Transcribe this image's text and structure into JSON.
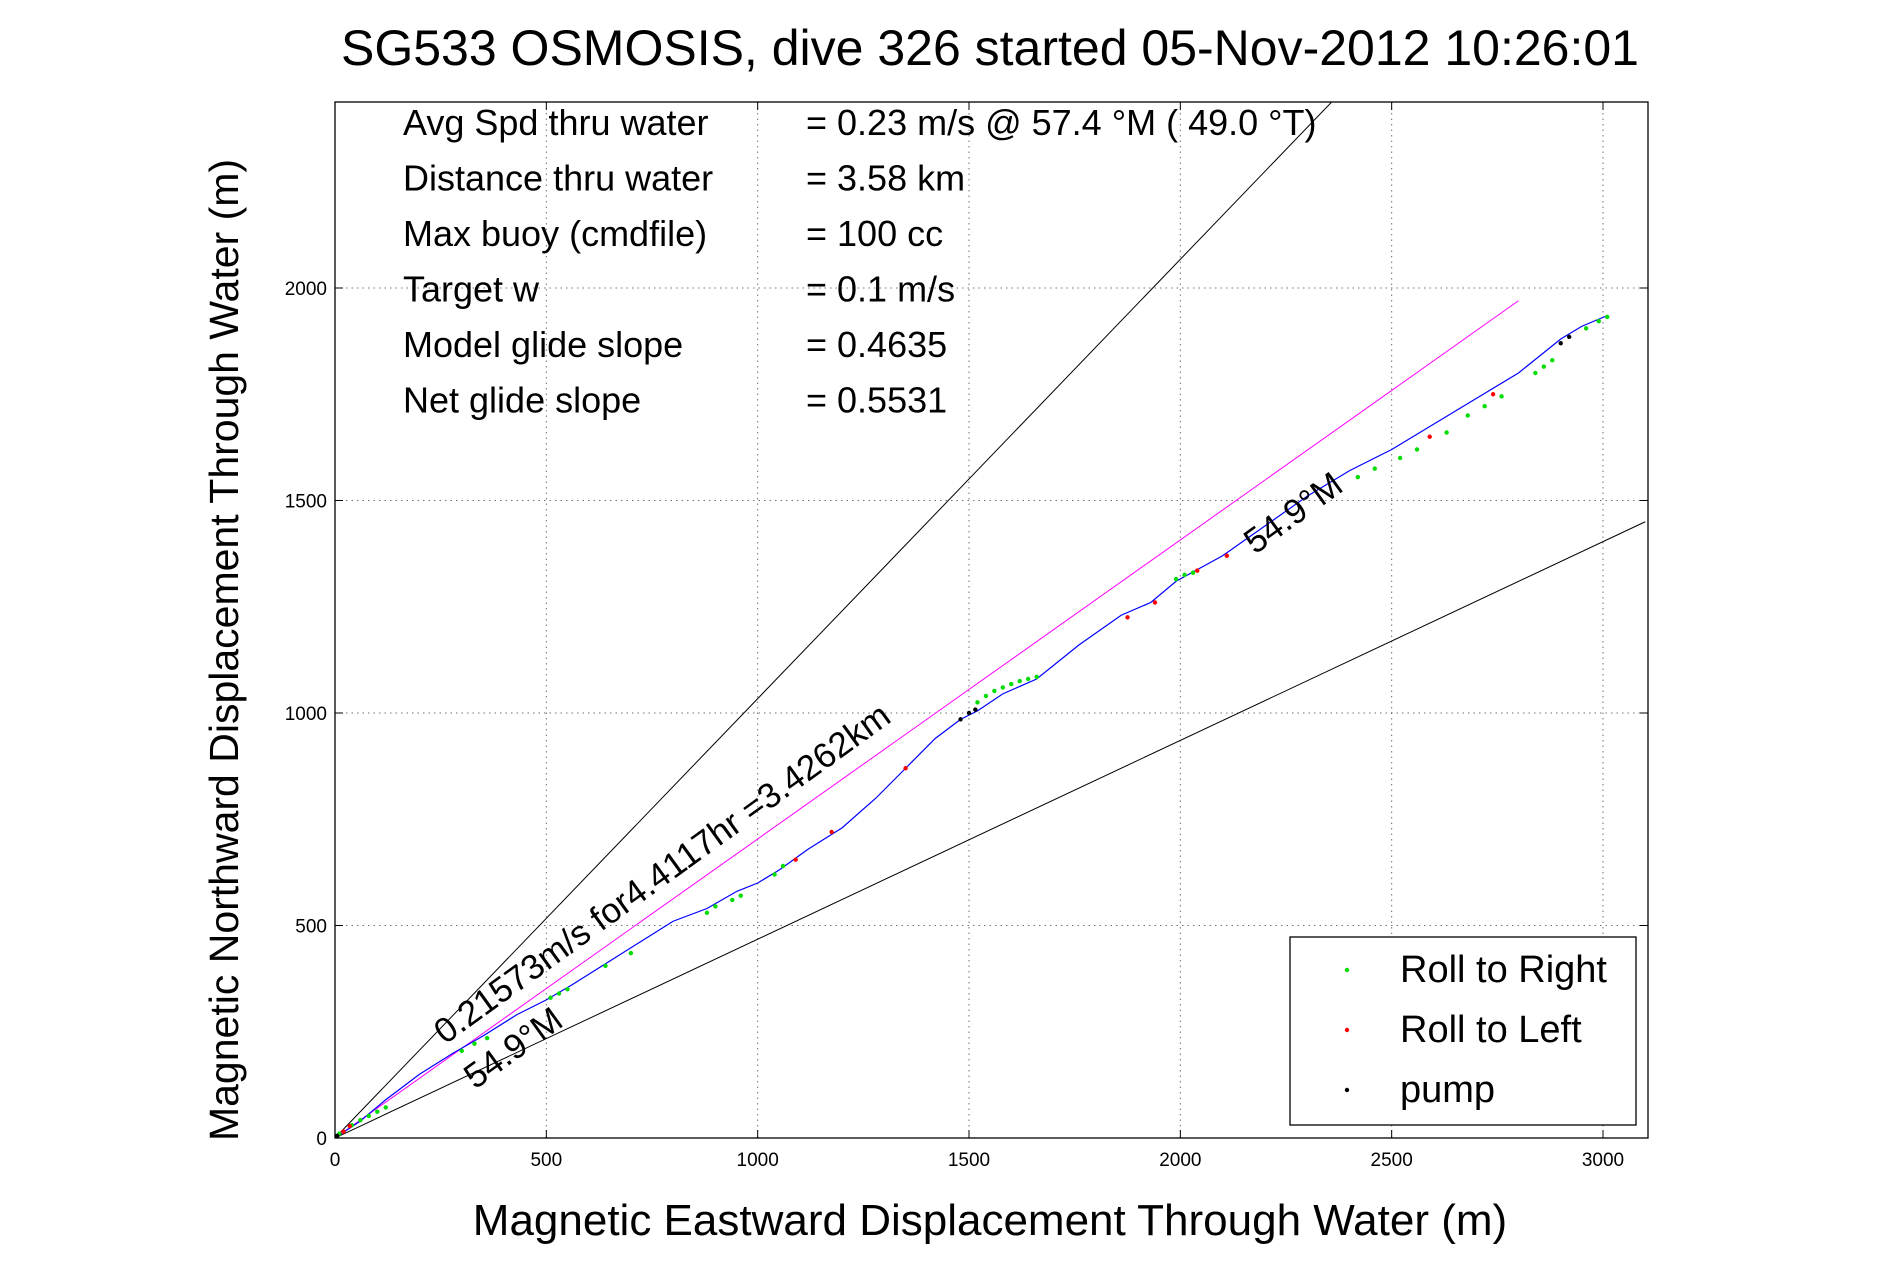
{
  "chart_data": {
    "type": "line",
    "title": "SG533 OSMOSIS, dive 326 started 05-Nov-2012 10:26:01",
    "xlabel": "Magnetic Eastward Displacement Through Water (m)",
    "ylabel": "Magnetic Northward Displacement Through Water (m)",
    "xlim": [
      0,
      3100
    ],
    "ylim": [
      0,
      2450
    ],
    "x_ticks": [
      0,
      500,
      1000,
      1500,
      2000,
      2500,
      3000
    ],
    "y_ticks": [
      0,
      500,
      1000,
      1500,
      2000
    ],
    "x_tick_labels": [
      "0",
      "500",
      "1000",
      "1500",
      "2000",
      "2500",
      "3000"
    ],
    "y_tick_labels": [
      "0",
      "500",
      "1000",
      "1500",
      "2000"
    ],
    "grid": true,
    "info_lines": [
      {
        "label": "Avg Spd thru water",
        "value": "=  0.23 m/s @  57.4 °M ( 49.0 °T)"
      },
      {
        "label": "Distance thru water",
        "value": "=  3.58 km"
      },
      {
        "label": "Max buoy (cmdfile)",
        "value": "= 100 cc"
      },
      {
        "label": "Target w",
        "value": "= 0.1 m/s"
      },
      {
        "label": "Model glide slope",
        "value": "= 0.4635"
      },
      {
        "label": "Net glide slope",
        "value": "= 0.5531"
      }
    ],
    "annotations": {
      "speed": "0.21573m/s for4.4117hr =3.4262km",
      "heading_upper": "54.9°M",
      "heading_lower": "54.9°M"
    },
    "reference_lines": [
      {
        "name": "one_to_one",
        "x": [
          0,
          2370
        ],
        "y": [
          0,
          2450
        ],
        "color": "#000000"
      },
      {
        "name": "shallow",
        "x": [
          0,
          3100
        ],
        "y": [
          0,
          1450
        ],
        "color": "#000000"
      },
      {
        "name": "heading_line",
        "x": [
          0,
          2800
        ],
        "y": [
          0,
          1970
        ],
        "color": "#ff00ff"
      }
    ],
    "series": [
      {
        "style": "line",
        "color": "#0000ff",
        "x": [
          0,
          60,
          120,
          200,
          280,
          350,
          430,
          500,
          560,
          640,
          720,
          800,
          880,
          950,
          1000,
          1050,
          1120,
          1200,
          1280,
          1350,
          1420,
          1480,
          1520,
          1580,
          1660,
          1760,
          1860,
          1930,
          1990,
          2100,
          2200,
          2300,
          2400,
          2500,
          2600,
          2700,
          2800,
          2900,
          2950,
          3010
        ],
        "y": [
          0,
          40,
          90,
          150,
          200,
          240,
          290,
          325,
          360,
          410,
          460,
          510,
          540,
          580,
          600,
          630,
          680,
          730,
          800,
          870,
          940,
          985,
          1005,
          1045,
          1080,
          1160,
          1230,
          1260,
          1310,
          1370,
          1440,
          1510,
          1570,
          1620,
          1680,
          1740,
          1800,
          1880,
          1910,
          1935
        ]
      },
      {
        "name": "Roll to Right",
        "style": "points",
        "color": "#00dd00",
        "x": [
          10,
          40,
          60,
          80,
          100,
          120,
          300,
          330,
          360,
          510,
          530,
          550,
          640,
          700,
          880,
          900,
          940,
          960,
          1040,
          1060,
          1520,
          1540,
          1560,
          1580,
          1600,
          1620,
          1640,
          1660,
          1990,
          2010,
          2030,
          2420,
          2460,
          2520,
          2560,
          2630,
          2680,
          2720,
          2760,
          2840,
          2860,
          2880,
          2960,
          2990,
          3010
        ],
        "y": [
          10,
          30,
          42,
          52,
          62,
          72,
          205,
          222,
          235,
          330,
          340,
          350,
          405,
          435,
          530,
          545,
          560,
          570,
          620,
          640,
          1025,
          1040,
          1052,
          1060,
          1068,
          1075,
          1080,
          1085,
          1315,
          1325,
          1330,
          1555,
          1575,
          1600,
          1620,
          1660,
          1700,
          1722,
          1745,
          1800,
          1815,
          1830,
          1905,
          1922,
          1932
        ]
      },
      {
        "name": "Roll to Left",
        "style": "points",
        "color": "#ff0000",
        "x": [
          20,
          35,
          1090,
          1175,
          1350,
          1875,
          1940,
          2040,
          2110,
          2590,
          2740
        ],
        "y": [
          15,
          28,
          655,
          720,
          870,
          1225,
          1260,
          1335,
          1370,
          1650,
          1750
        ]
      },
      {
        "name": "pump",
        "style": "points",
        "color": "#000000",
        "x": [
          5,
          1480,
          1500,
          1515,
          2900,
          2920
        ],
        "y": [
          5,
          985,
          1000,
          1008,
          1870,
          1885
        ]
      }
    ],
    "legend": {
      "placement": "bottom-right",
      "entries": [
        "Roll to Right",
        "Roll to Left",
        "pump"
      ]
    }
  }
}
